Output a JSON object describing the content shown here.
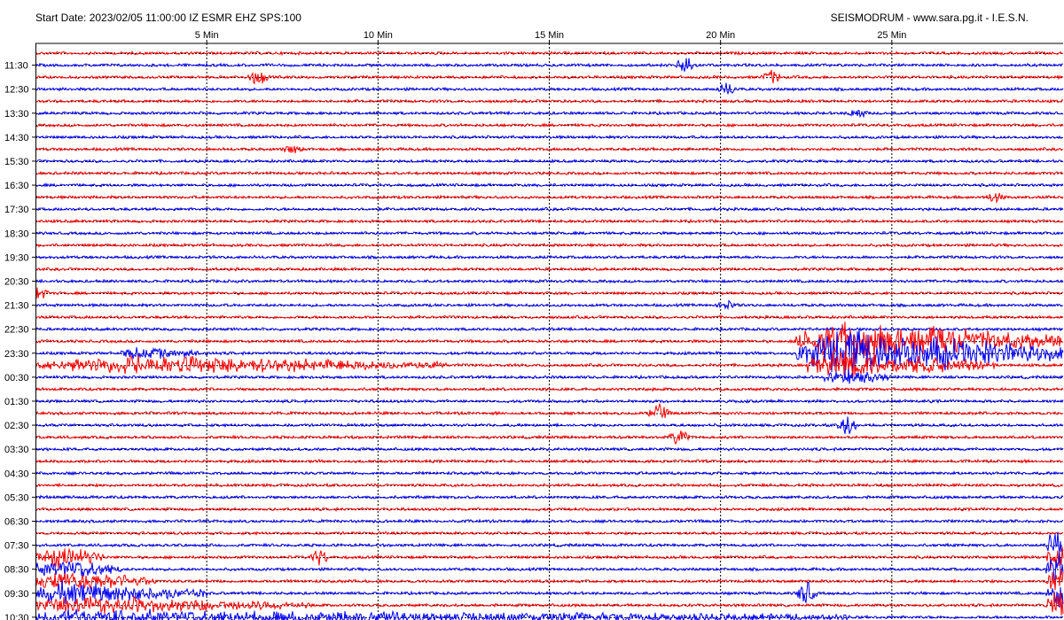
{
  "header": {
    "left": "Start Date: 2023/02/05 11:00:00 IZ ESMR EHZ SPS:100",
    "right": "SEISMODRUM - www.sara.pg.it - I.E.S.N."
  },
  "chart_data": {
    "type": "line",
    "title": "",
    "x_ticks": [
      5,
      10,
      15,
      20,
      25
    ],
    "x_tick_labels": [
      "5 Min",
      "10 Min",
      "15 Min",
      "20 Min",
      "25 Min"
    ],
    "xlim": [
      0,
      30
    ],
    "y_tick_labels": [
      "11:30",
      "12:30",
      "13:30",
      "14:30",
      "15:30",
      "16:30",
      "17:30",
      "18:30",
      "19:30",
      "20:30",
      "21:30",
      "22:30",
      "23:30",
      "00:30",
      "01:30",
      "02:30",
      "03:30",
      "04:30",
      "05:30",
      "06:30",
      "07:30",
      "08:30",
      "09:30",
      "10:30"
    ],
    "trace_count": 48,
    "trace_colors": [
      "#ff0000",
      "#0000ff"
    ],
    "grid": true,
    "events": [
      {
        "trace": 1,
        "minute": 19.0,
        "amplitude": 1.2
      },
      {
        "trace": 2,
        "minute": 6.5,
        "amplitude": 1.0
      },
      {
        "trace": 2,
        "minute": 21.5,
        "amplitude": 0.8
      },
      {
        "trace": 3,
        "minute": 20.2,
        "amplitude": 0.8
      },
      {
        "trace": 5,
        "minute": 24.0,
        "amplitude": 0.6
      },
      {
        "trace": 8,
        "minute": 7.5,
        "amplitude": 0.5
      },
      {
        "trace": 12,
        "minute": 28.0,
        "amplitude": 0.6
      },
      {
        "trace": 20,
        "minute": 0.1,
        "amplitude": 0.8
      },
      {
        "trace": 21,
        "minute": 20.2,
        "amplitude": 0.5
      },
      {
        "trace": 30,
        "minute": 18.2,
        "amplitude": 1.2
      },
      {
        "trace": 31,
        "minute": 23.7,
        "amplitude": 1.2
      },
      {
        "trace": 32,
        "minute": 18.8,
        "amplitude": 1.0
      },
      {
        "trace": 42,
        "minute": 8.3,
        "amplitude": 1.0
      },
      {
        "trace": 45,
        "minute": 22.5,
        "amplitude": 1.5
      }
    ],
    "bursts": [
      {
        "trace": 24,
        "start": 22.2,
        "peak": 23.5,
        "end": 30.0,
        "amplitude": 5.5
      },
      {
        "trace": 25,
        "start": 22.2,
        "peak": 23.5,
        "end": 30.0,
        "amplitude": 6.5
      },
      {
        "trace": 26,
        "start": 22.5,
        "peak": 23.5,
        "end": 28.0,
        "amplitude": 4.0
      },
      {
        "trace": 27,
        "start": 23.0,
        "peak": 23.7,
        "end": 25.0,
        "amplitude": 2.0
      },
      {
        "trace": 26,
        "start": 0.0,
        "peak": 3.0,
        "end": 12.0,
        "amplitude": 2.5
      },
      {
        "trace": 25,
        "start": 2.5,
        "peak": 3.0,
        "end": 5.0,
        "amplitude": 1.5
      },
      {
        "trace": 41,
        "start": 29.5,
        "peak": 30.0,
        "end": 30.0,
        "amplitude": 5.0
      },
      {
        "trace": 42,
        "start": 29.5,
        "peak": 30.0,
        "end": 30.0,
        "amplitude": 5.0
      },
      {
        "trace": 43,
        "start": 29.5,
        "peak": 30.0,
        "end": 30.0,
        "amplitude": 5.0
      },
      {
        "trace": 44,
        "start": 29.5,
        "peak": 30.0,
        "end": 30.0,
        "amplitude": 5.0
      },
      {
        "trace": 45,
        "start": 29.5,
        "peak": 30.0,
        "end": 30.0,
        "amplitude": 5.0
      },
      {
        "trace": 46,
        "start": 29.5,
        "peak": 30.0,
        "end": 30.0,
        "amplitude": 5.0
      },
      {
        "trace": 42,
        "start": 0.0,
        "peak": 0.8,
        "end": 2.0,
        "amplitude": 3.0
      },
      {
        "trace": 43,
        "start": 0.0,
        "peak": 0.8,
        "end": 2.5,
        "amplitude": 3.0
      },
      {
        "trace": 44,
        "start": 0.0,
        "peak": 0.8,
        "end": 3.5,
        "amplitude": 3.0
      },
      {
        "trace": 45,
        "start": 0.0,
        "peak": 0.8,
        "end": 5.0,
        "amplitude": 3.0
      },
      {
        "trace": 46,
        "start": 0.0,
        "peak": 0.8,
        "end": 8.0,
        "amplitude": 2.5
      },
      {
        "trace": 47,
        "start": 0.0,
        "peak": 1.0,
        "end": 24.0,
        "amplitude": 2.0
      }
    ]
  }
}
